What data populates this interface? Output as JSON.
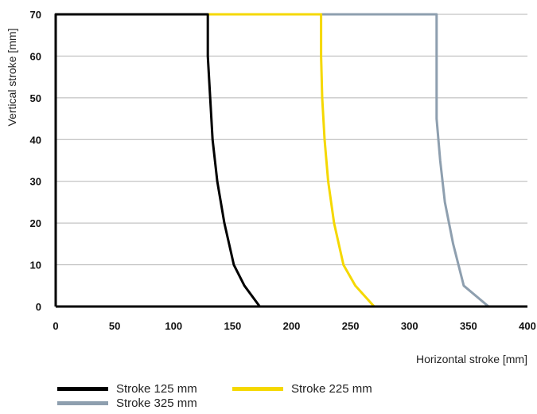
{
  "chart_data": {
    "type": "line",
    "xlabel": "Horizontal stroke [mm]",
    "ylabel": "Vertical stroke [mm]",
    "xlim": [
      0,
      400
    ],
    "ylim": [
      0,
      70
    ],
    "xticks": [
      "0",
      "50",
      "100",
      "150",
      "200",
      "250",
      "300",
      "350",
      "400"
    ],
    "yticks": [
      "0",
      "10",
      "20",
      "30",
      "40",
      "50",
      "60",
      "70"
    ],
    "grid": "horizontal",
    "legend_position": "bottom",
    "series": [
      {
        "name": "Stroke 125 mm",
        "color": "#000000",
        "points": [
          [
            0,
            0
          ],
          [
            0,
            70
          ],
          [
            129,
            70
          ],
          [
            129,
            60
          ],
          [
            131,
            50
          ],
          [
            133,
            40
          ],
          [
            137,
            30
          ],
          [
            143,
            20
          ],
          [
            151,
            10
          ],
          [
            160,
            5
          ],
          [
            173,
            0
          ]
        ]
      },
      {
        "name": "Stroke 225 mm",
        "color": "#f5d800",
        "points": [
          [
            129,
            70
          ],
          [
            225,
            70
          ],
          [
            225,
            60
          ],
          [
            226,
            50
          ],
          [
            228,
            40
          ],
          [
            231,
            30
          ],
          [
            236,
            20
          ],
          [
            244,
            10
          ],
          [
            254,
            5
          ],
          [
            270,
            0
          ]
        ]
      },
      {
        "name": "Stroke 325 mm",
        "color": "#8e9faf",
        "points": [
          [
            225,
            70
          ],
          [
            323,
            70
          ],
          [
            323,
            60
          ],
          [
            323,
            45
          ],
          [
            326,
            35
          ],
          [
            330,
            25
          ],
          [
            337,
            15
          ],
          [
            346,
            5
          ],
          [
            367,
            0
          ]
        ]
      }
    ]
  }
}
